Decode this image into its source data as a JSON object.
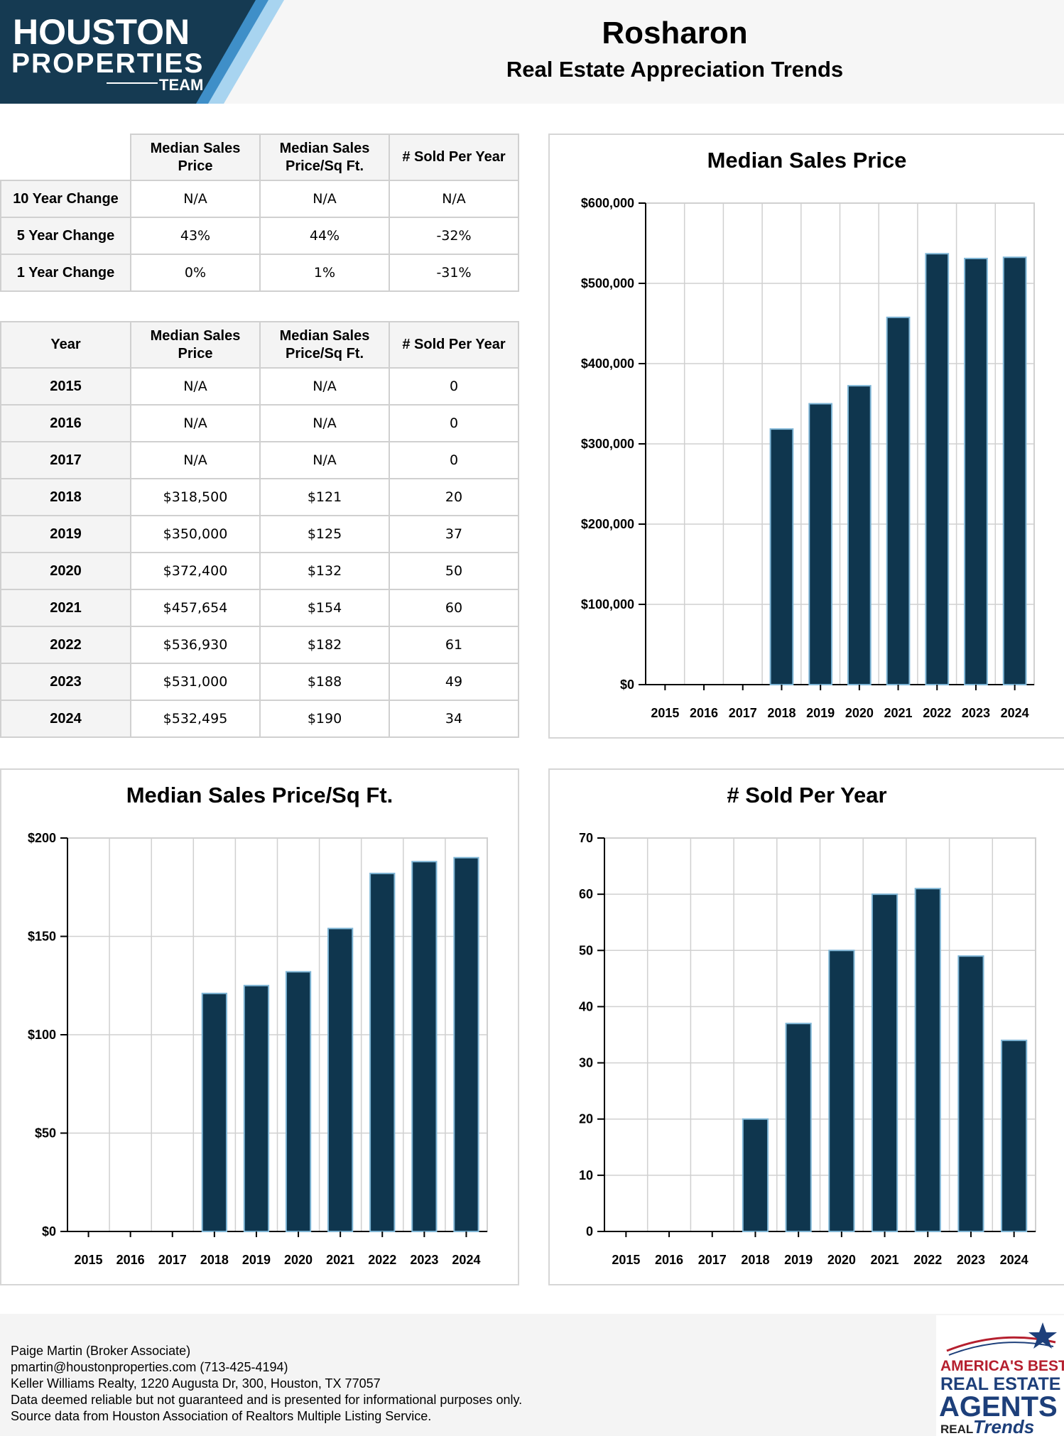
{
  "header": {
    "logo_line1": "HOUSTON",
    "logo_line2": "PROPERTIES",
    "logo_line3": "TEAM",
    "title": "Rosharon",
    "subtitle": "Real Estate Appreciation Trends"
  },
  "change_table": {
    "headers": [
      "Median Sales\nPrice",
      "Median Sales\nPrice/Sq Ft.",
      "# Sold Per Year"
    ],
    "rows": [
      {
        "label": "10 Year Change",
        "price": "N/A",
        "sqft": "N/A",
        "sold": "N/A"
      },
      {
        "label": "5 Year Change",
        "price": "43%",
        "sqft": "44%",
        "sold": "-32%"
      },
      {
        "label": "1 Year Change",
        "price": "0%",
        "sqft": "1%",
        "sold": "-31%"
      }
    ]
  },
  "year_table": {
    "headers": [
      "Year",
      "Median Sales\nPrice",
      "Median Sales\nPrice/Sq Ft.",
      "# Sold Per Year"
    ],
    "rows": [
      {
        "year": "2015",
        "price": "N/A",
        "sqft": "N/A",
        "sold": "0"
      },
      {
        "year": "2016",
        "price": "N/A",
        "sqft": "N/A",
        "sold": "0"
      },
      {
        "year": "2017",
        "price": "N/A",
        "sqft": "N/A",
        "sold": "0"
      },
      {
        "year": "2018",
        "price": "$318,500",
        "sqft": "$121",
        "sold": "20"
      },
      {
        "year": "2019",
        "price": "$350,000",
        "sqft": "$125",
        "sold": "37"
      },
      {
        "year": "2020",
        "price": "$372,400",
        "sqft": "$132",
        "sold": "50"
      },
      {
        "year": "2021",
        "price": "$457,654",
        "sqft": "$154",
        "sold": "60"
      },
      {
        "year": "2022",
        "price": "$536,930",
        "sqft": "$182",
        "sold": "61"
      },
      {
        "year": "2023",
        "price": "$531,000",
        "sqft": "$188",
        "sold": "49"
      },
      {
        "year": "2024",
        "price": "$532,495",
        "sqft": "$190",
        "sold": "34"
      }
    ]
  },
  "chart_data": [
    {
      "type": "bar",
      "title": "Median Sales Price",
      "categories": [
        "2015",
        "2016",
        "2017",
        "2018",
        "2019",
        "2020",
        "2021",
        "2022",
        "2023",
        "2024"
      ],
      "values": [
        0,
        0,
        0,
        318500,
        350000,
        372400,
        457654,
        536930,
        531000,
        532495
      ],
      "yticks": [
        "$0",
        "$100,000",
        "$200,000",
        "$300,000",
        "$400,000",
        "$500,000",
        "$600,000"
      ],
      "ylim": [
        0,
        600000
      ],
      "grid": true
    },
    {
      "type": "bar",
      "title": "Median Sales Price/Sq Ft.",
      "categories": [
        "2015",
        "2016",
        "2017",
        "2018",
        "2019",
        "2020",
        "2021",
        "2022",
        "2023",
        "2024"
      ],
      "values": [
        0,
        0,
        0,
        121,
        125,
        132,
        154,
        182,
        188,
        190
      ],
      "yticks": [
        "$0",
        "$50",
        "$100",
        "$150",
        "$200"
      ],
      "ylim": [
        0,
        200
      ],
      "grid": true
    },
    {
      "type": "bar",
      "title": "# Sold Per Year",
      "categories": [
        "2015",
        "2016",
        "2017",
        "2018",
        "2019",
        "2020",
        "2021",
        "2022",
        "2023",
        "2024"
      ],
      "values": [
        0,
        0,
        0,
        20,
        37,
        50,
        60,
        61,
        49,
        34
      ],
      "yticks": [
        "0",
        "10",
        "20",
        "30",
        "40",
        "50",
        "60",
        "70"
      ],
      "ylim": [
        0,
        70
      ],
      "grid": true
    }
  ],
  "colors": {
    "bar": "#0f364e",
    "bar_edge": "#7fb6d6",
    "grid": "#d0d0d0"
  },
  "footer": {
    "lines": [
      "Paige Martin (Broker Associate)",
      "pmartin@houstonproperties.com (713-425-4194)",
      "Keller Williams Realty, 1220 Augusta Dr, 300, Houston, TX 77057",
      "Data deemed reliable but not guaranteed and is presented for informational purposes only.",
      "Source data from Houston Association of Realtors Multiple Listing Service."
    ],
    "badge_line1": "AMERICA'S BEST",
    "badge_line2": "REAL ESTATE",
    "badge_line3": "AGENTS",
    "badge_line4": "REAL",
    "badge_line5": "Trends"
  }
}
